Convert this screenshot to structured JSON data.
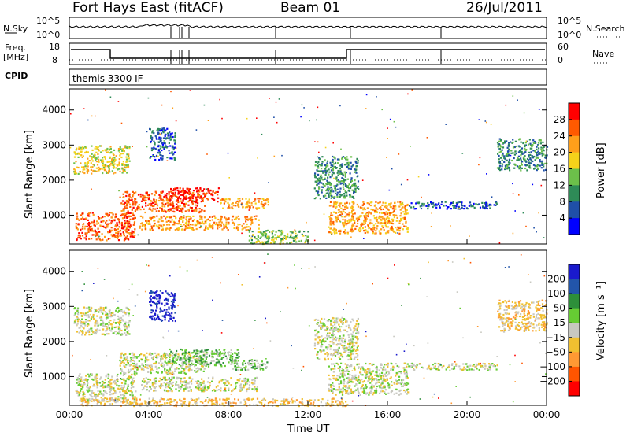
{
  "header": {
    "station": "Fort Hays East (fitACF)",
    "beam": "Beam 01",
    "date": "26/Jul/2011"
  },
  "panels": {
    "nsky_label": "N.Sky",
    "nsearch_label": "N.Search",
    "nsky_ticks": [
      "10^5",
      "10^0"
    ],
    "nsearch_ticks": [
      "10^5",
      "10^0"
    ],
    "freq_label_line1": "Freq.",
    "freq_label_line2": "[MHz]",
    "freq_ticks": [
      "18",
      "8"
    ],
    "nave_label": "Nave",
    "nave_ticks": [
      "60",
      "0"
    ],
    "cpid_label": "CPID",
    "cpid_value": "themis 3300 IF"
  },
  "colors": {
    "power_scale": [
      "#0000ff",
      "#1f4fa8",
      "#2e8b57",
      "#6cc04a",
      "#f5d21a",
      "#ff9f1a",
      "#ff5a00",
      "#ff0000"
    ],
    "velocity_scale": [
      "#1a1acc",
      "#2255aa",
      "#2d8f3a",
      "#66cc33",
      "#c8c8c0",
      "#f0c030",
      "#ff9933",
      "#ff5500",
      "#ff0000"
    ]
  },
  "chart_data": [
    {
      "type": "heatmap",
      "title": "Power",
      "ylabel": "Slant Range [km]",
      "xlabel": "Time UT",
      "x_ticks": [
        "00:00",
        "04:00",
        "08:00",
        "12:00",
        "16:00",
        "20:00",
        "00:00"
      ],
      "y_ticks": [
        "1000",
        "2000",
        "3000",
        "4000"
      ],
      "xlim": [
        0,
        24
      ],
      "ylim": [
        180,
        4600
      ],
      "colorbar_label": "Power [dB]",
      "colorbar_ticks": [
        "4",
        "8",
        "12",
        "16",
        "20",
        "24",
        "28"
      ],
      "regions": [
        {
          "t": [
            0.2,
            3.0
          ],
          "r": [
            2200,
            3000
          ],
          "level": 4
        },
        {
          "t": [
            0.3,
            3.3
          ],
          "r": [
            300,
            1100
          ],
          "level": 6
        },
        {
          "t": [
            2.5,
            6.8
          ],
          "r": [
            1100,
            1700
          ],
          "level": 6
        },
        {
          "t": [
            5.0,
            7.5
          ],
          "r": [
            1400,
            1800
          ],
          "level": 7
        },
        {
          "t": [
            7.5,
            10.0
          ],
          "r": [
            1200,
            1500
          ],
          "level": 5
        },
        {
          "t": [
            3.5,
            9.5
          ],
          "r": [
            600,
            1000
          ],
          "level": 5
        },
        {
          "t": [
            4.0,
            5.3
          ],
          "r": [
            2600,
            3500
          ],
          "level": 1
        },
        {
          "t": [
            9.0,
            12.0
          ],
          "r": [
            200,
            600
          ],
          "level": 3
        },
        {
          "t": [
            12.3,
            14.5
          ],
          "r": [
            1500,
            2700
          ],
          "level": 2
        },
        {
          "t": [
            13.0,
            17.0
          ],
          "r": [
            500,
            1400
          ],
          "level": 5
        },
        {
          "t": [
            17.0,
            21.5
          ],
          "r": [
            1200,
            1400
          ],
          "level": 1
        },
        {
          "t": [
            21.5,
            24.0
          ],
          "r": [
            2300,
            3200
          ],
          "level": 2
        }
      ]
    },
    {
      "type": "heatmap",
      "title": "Velocity",
      "ylabel": "Slant Range [km]",
      "xlabel": "Time UT",
      "x_ticks": [
        "00:00",
        "04:00",
        "08:00",
        "12:00",
        "16:00",
        "20:00",
        "00:00"
      ],
      "y_ticks": [
        "1000",
        "2000",
        "3000",
        "4000"
      ],
      "xlim": [
        0,
        24
      ],
      "ylim": [
        180,
        4600
      ],
      "colorbar_label": "Velocity [m s⁻¹]",
      "colorbar_ticks": [
        "200",
        "100",
        "50",
        "15",
        "−15",
        "−50",
        "−100",
        "−200"
      ],
      "regions": [
        {
          "t": [
            0.2,
            3.0
          ],
          "r": [
            2200,
            3000
          ],
          "level": 4
        },
        {
          "t": [
            0.3,
            3.3
          ],
          "r": [
            300,
            1100
          ],
          "level": 4
        },
        {
          "t": [
            2.5,
            6.8
          ],
          "r": [
            1100,
            1700
          ],
          "level": 4
        },
        {
          "t": [
            5.0,
            8.5
          ],
          "r": [
            1300,
            1800
          ],
          "level": 3
        },
        {
          "t": [
            8.0,
            10.0
          ],
          "r": [
            1200,
            1500
          ],
          "level": 3
        },
        {
          "t": [
            3.5,
            9.5
          ],
          "r": [
            600,
            1000
          ],
          "level": 4
        },
        {
          "t": [
            4.0,
            5.3
          ],
          "r": [
            2600,
            3500
          ],
          "level": 0
        },
        {
          "t": [
            0.5,
            14.0
          ],
          "r": [
            180,
            400
          ],
          "level": 5
        },
        {
          "t": [
            12.3,
            14.5
          ],
          "r": [
            1500,
            2700
          ],
          "level": 4
        },
        {
          "t": [
            13.0,
            17.0
          ],
          "r": [
            500,
            1400
          ],
          "level": 4
        },
        {
          "t": [
            17.0,
            21.5
          ],
          "r": [
            1200,
            1400
          ],
          "level": 4
        },
        {
          "t": [
            21.5,
            24.0
          ],
          "r": [
            2300,
            3200
          ],
          "level": 5
        }
      ]
    }
  ]
}
